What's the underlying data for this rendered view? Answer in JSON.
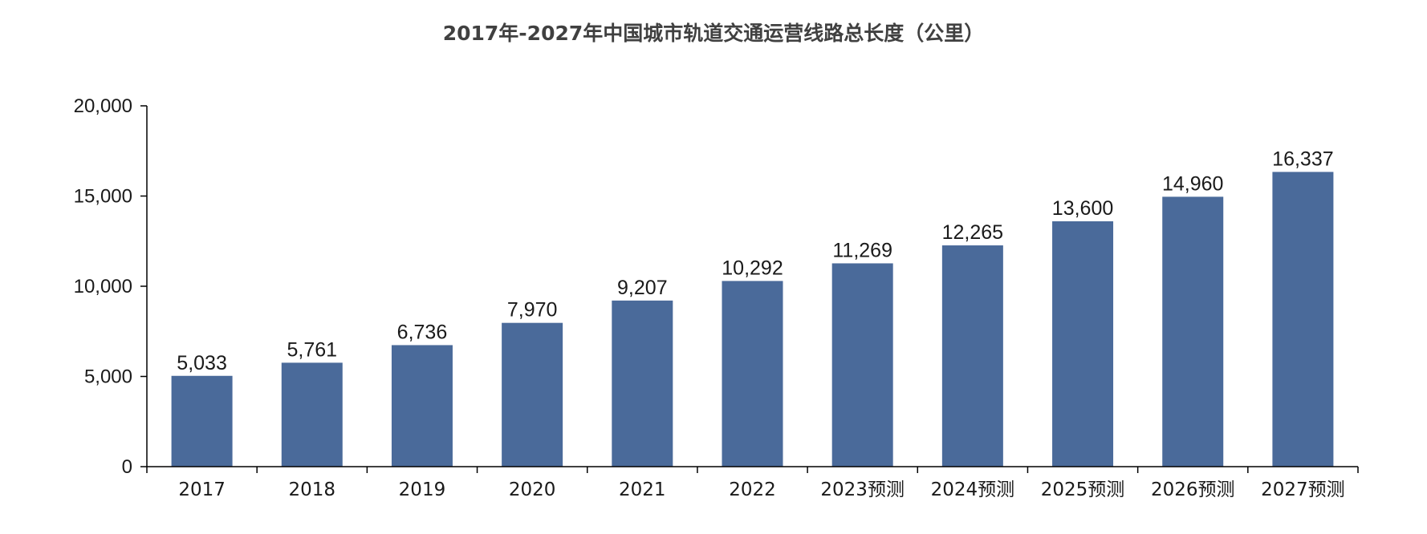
{
  "chart_data": {
    "type": "bar",
    "title": "2017年-2027年中国城市轨道交通运营线路总长度（公里）",
    "categories": [
      "2017",
      "2018",
      "2019",
      "2020",
      "2021",
      "2022",
      "2023预测",
      "2024预测",
      "2025预测",
      "2026预测",
      "2027预测"
    ],
    "values": [
      5033,
      5761,
      6736,
      7970,
      9207,
      10292,
      11269,
      12265,
      13600,
      14960,
      16337
    ],
    "value_labels": [
      "5,033",
      "5,761",
      "6,736",
      "7,970",
      "9,207",
      "10,292",
      "11,269",
      "12,265",
      "13,600",
      "14,960",
      "16,337"
    ],
    "ylim": [
      0,
      20000
    ],
    "yticks": [
      0,
      5000,
      10000,
      15000,
      20000
    ],
    "ytick_labels": [
      "0",
      "5,000",
      "10,000",
      "15,000",
      "20,000"
    ],
    "xlabel": "",
    "ylabel": "",
    "grid": false,
    "bar_color": "#4a6a9a"
  }
}
